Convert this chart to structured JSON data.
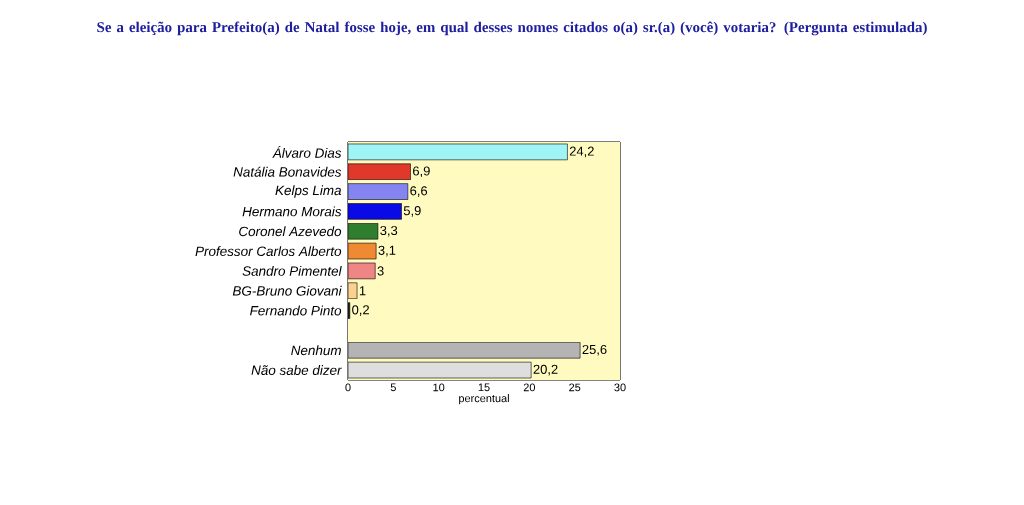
{
  "chart_data": {
    "type": "bar",
    "orientation": "horizontal",
    "title": "Se a eleição para Prefeito(a) de Natal fosse hoje, em qual desses nomes citados o(a) sr.(a) (você) votaria?   (Pergunta estimulada)",
    "xlabel": "percentual",
    "categories": [
      "Álvaro Dias",
      "Natália Bonavides",
      "Kelps Lima",
      "Hermano Morais",
      "Coronel Azevedo",
      "Professor Carlos Alberto",
      "Sandro Pimentel",
      "BG-Bruno Giovani",
      "Fernando Pinto",
      null,
      "Nenhum",
      "Não sabe dizer"
    ],
    "values": [
      24.2,
      6.9,
      6.6,
      5.9,
      3.3,
      3.1,
      3,
      1,
      0.2,
      null,
      25.6,
      20.2
    ],
    "value_labels": [
      "24,2",
      "6,9",
      "6,6",
      "5,9",
      "3,3",
      "3,1",
      "3",
      "1",
      "0,2",
      null,
      "25,6",
      "20,2"
    ],
    "colors": [
      "#9ff5f5",
      "#e0392b",
      "#8585f2",
      "#0a0ae6",
      "#2f7d2f",
      "#f08a32",
      "#f08585",
      "#fcd08f",
      "#202020",
      null,
      "#b4b4b4",
      "#dedede"
    ],
    "xlim": [
      0,
      30
    ],
    "xticks": [
      0,
      5,
      10,
      15,
      20,
      25,
      30
    ],
    "grid": "x"
  }
}
